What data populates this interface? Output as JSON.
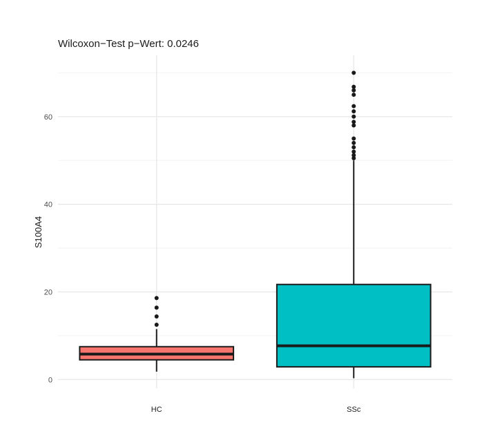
{
  "chart_data": {
    "type": "boxplot",
    "title": "Wilcoxon−Test p−Wert: 0.0246",
    "xlabel": "",
    "ylabel": "S100A4",
    "ylim": [
      -2,
      74
    ],
    "y_ticks": [
      0,
      20,
      40,
      60
    ],
    "y_tick_labels": [
      "0",
      "20",
      "40",
      "60"
    ],
    "grid": true,
    "legend": "none",
    "categories": [
      "HC",
      "SSc"
    ],
    "boxes": [
      {
        "category": "HC",
        "color": "#F8766D",
        "whisker_low": 1.8,
        "q1": 4.5,
        "median": 5.8,
        "q3": 7.5,
        "whisker_high": 11.5,
        "outliers": [
          12.5,
          14.4,
          16.4,
          18.6
        ]
      },
      {
        "category": "SSc",
        "color": "#00BFC4",
        "whisker_low": 0.3,
        "q1": 2.9,
        "median": 7.7,
        "q3": 21.7,
        "whisker_high": 50.0,
        "outliers": [
          50.5,
          51.2,
          52.0,
          53.0,
          54.0,
          55.0,
          58.0,
          58.8,
          60.0,
          61.2,
          62.4,
          65.0,
          66.0,
          66.8,
          70.0
        ]
      }
    ]
  }
}
